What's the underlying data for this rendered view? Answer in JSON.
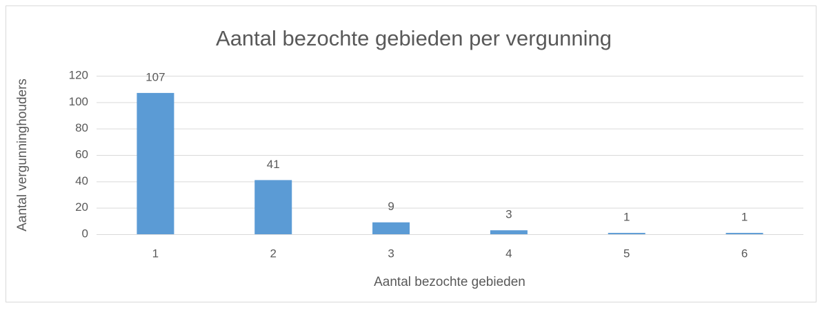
{
  "chart_data": {
    "type": "bar",
    "title": "Aantal bezochte gebieden per vergunning",
    "x_label": "Aantal bezochte gebieden",
    "y_label": "Aantal vergunninghouders",
    "categories": [
      "1",
      "2",
      "3",
      "4",
      "5",
      "6"
    ],
    "values": [
      107,
      41,
      9,
      3,
      1,
      1
    ],
    "color": "#5b9bd5",
    "ylim": [
      0,
      120
    ],
    "yticks": [
      0,
      20,
      40,
      60,
      80,
      100,
      120
    ],
    "grid": true,
    "data_labels": true
  }
}
